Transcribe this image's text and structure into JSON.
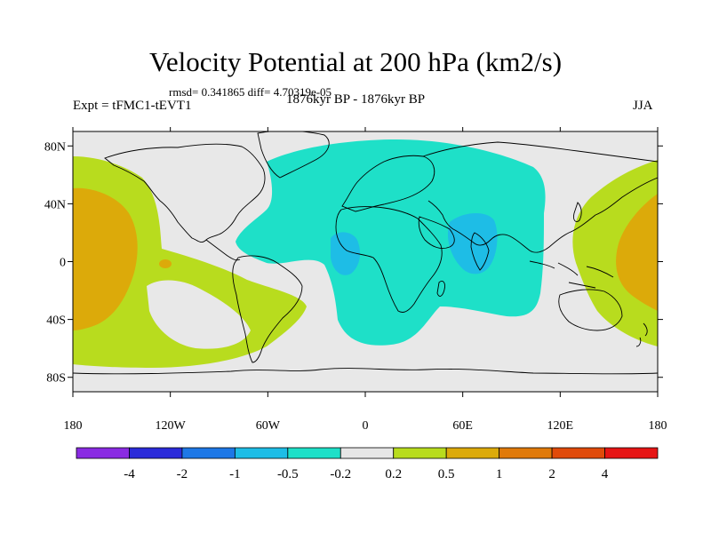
{
  "header": {
    "title": "Velocity Potential at 200 hPa (km2/s)",
    "stats": "rmsd= 0.341865 diff= 4.70319e-05",
    "left_label": "Expt = tFMC1-tEVT1",
    "center_label": "1876kyr BP - 1876kyr BP",
    "right_label": "JJA"
  },
  "axes": {
    "lat_ticks": [
      "80N",
      "40N",
      "0",
      "40S",
      "80S"
    ],
    "lat_values": [
      80,
      40,
      0,
      -40,
      -80
    ],
    "lon_ticks": [
      "180",
      "120W",
      "60W",
      "0",
      "60E",
      "120E",
      "180"
    ],
    "lon_values": [
      -180,
      -120,
      -60,
      0,
      60,
      120,
      180
    ],
    "lat_range": [
      -90,
      90
    ],
    "lon_range": [
      -180,
      180
    ]
  },
  "colorbar": {
    "colors": [
      "#8a2be2",
      "#2b2bd9",
      "#1e78e6",
      "#1ebde6",
      "#1ee0c8",
      "#e6e6e6",
      "#b8dc1e",
      "#dcaa0a",
      "#e07a0a",
      "#e04a0a",
      "#e61414"
    ],
    "labels": [
      "-4",
      "-2",
      "-1",
      "-0.5",
      "-0.2",
      "0.2",
      "0.5",
      "1",
      "2",
      "4"
    ]
  },
  "colors": {
    "background_field": "#e8e8e8",
    "negative_field": "#1ee0c8",
    "strong_negative_field": "#1ebde6",
    "positive_field": "#b8dc1e",
    "strong_positive_field": "#dcaa0a"
  }
}
